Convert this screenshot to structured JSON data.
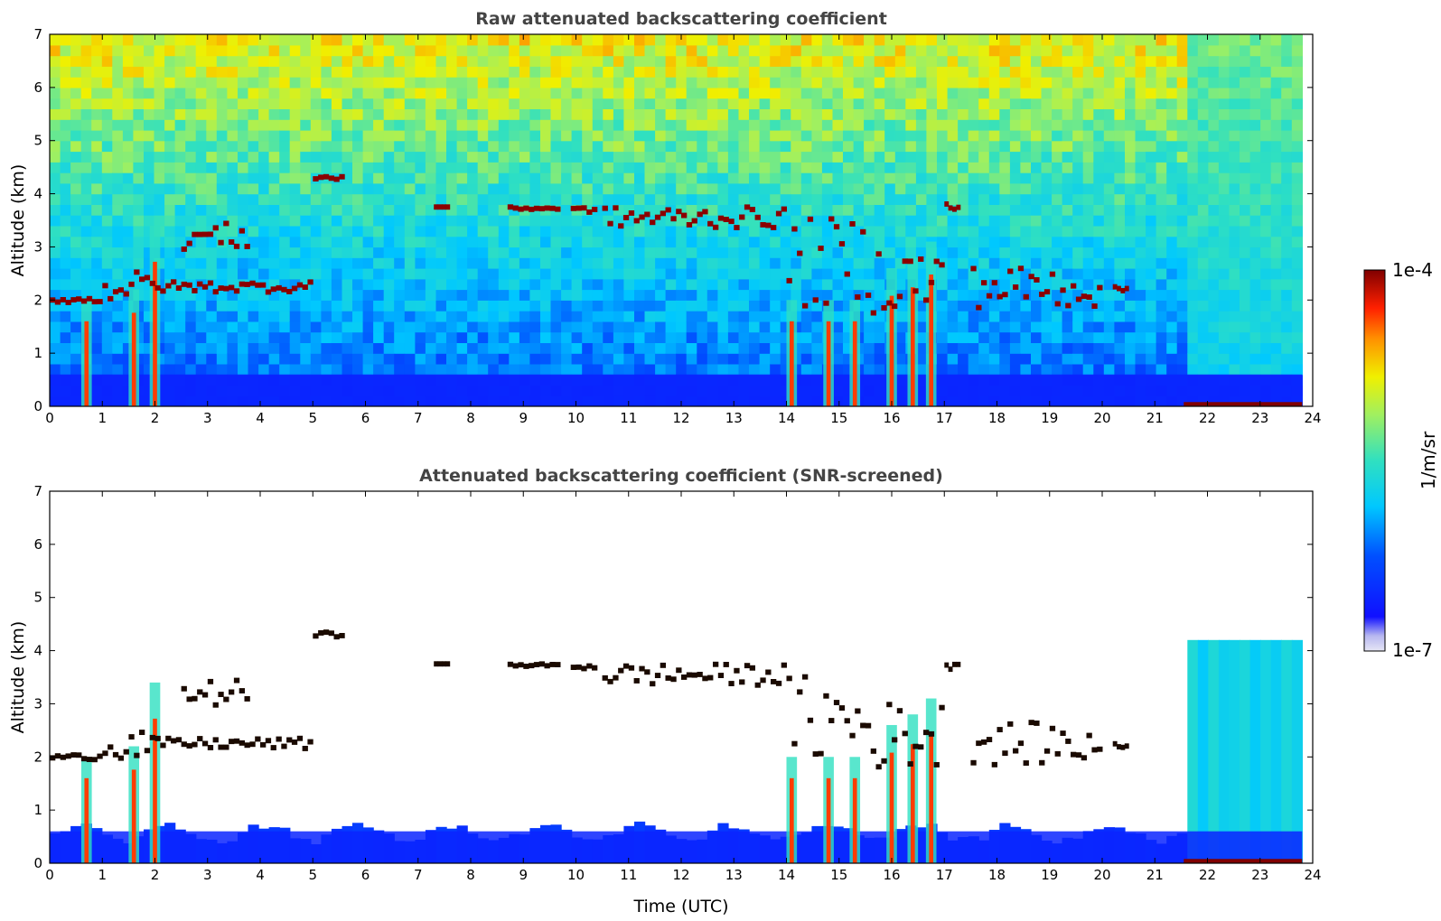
{
  "chart_data": [
    {
      "type": "heatmap",
      "title": "Raw attenuated backscattering coefficient",
      "ylabel": "Altitude (km)",
      "xlabel": "",
      "xlim": [
        0,
        24
      ],
      "ylim": [
        0,
        7
      ],
      "xticks": [
        "0",
        "1",
        "2",
        "3",
        "4",
        "5",
        "6",
        "7",
        "8",
        "9",
        "10",
        "11",
        "12",
        "13",
        "14",
        "15",
        "16",
        "17",
        "18",
        "19",
        "20",
        "21",
        "22",
        "23",
        "24"
      ],
      "yticks": [
        "0",
        "1",
        "2",
        "3",
        "4",
        "5",
        "6",
        "7"
      ],
      "screened": false,
      "cloud_layers": [
        {
          "t0": 0.0,
          "t1": 1.0,
          "alt": [
            1.9,
            2.0
          ]
        },
        {
          "t0": 1.0,
          "t1": 2.0,
          "alt": [
            1.9,
            2.5
          ]
        },
        {
          "t0": 2.0,
          "t1": 5.0,
          "alt": [
            2.1,
            2.3
          ]
        },
        {
          "t0": 2.5,
          "t1": 3.8,
          "alt": [
            2.9,
            3.4
          ]
        },
        {
          "t0": 5.0,
          "t1": 5.6,
          "alt": [
            4.2,
            4.3
          ]
        },
        {
          "t0": 7.3,
          "t1": 7.6,
          "alt": [
            3.7,
            3.7
          ]
        },
        {
          "t0": 8.7,
          "t1": 9.7,
          "alt": [
            3.65,
            3.7
          ]
        },
        {
          "t0": 9.9,
          "t1": 10.4,
          "alt": [
            3.6,
            3.7
          ]
        },
        {
          "t0": 10.5,
          "t1": 14.0,
          "alt": [
            3.3,
            3.7
          ]
        },
        {
          "t0": 14.0,
          "t1": 15.5,
          "alt": [
            1.8,
            3.5
          ]
        },
        {
          "t0": 15.5,
          "t1": 17.0,
          "alt": [
            1.7,
            3.0
          ]
        },
        {
          "t0": 17.0,
          "t1": 17.3,
          "alt": [
            3.6,
            3.8
          ]
        },
        {
          "t0": 17.5,
          "t1": 20.0,
          "alt": [
            1.8,
            2.6
          ]
        },
        {
          "t0": 20.2,
          "t1": 20.5,
          "alt": [
            2.1,
            2.2
          ]
        }
      ],
      "precip_columns": [
        {
          "t": 0.7,
          "top": 2.0
        },
        {
          "t": 1.6,
          "top": 2.2
        },
        {
          "t": 2.0,
          "top": 3.4
        },
        {
          "t": 14.1,
          "top": 2.0
        },
        {
          "t": 14.8,
          "top": 2.0
        },
        {
          "t": 15.3,
          "top": 2.0
        },
        {
          "t": 16.0,
          "top": 2.6
        },
        {
          "t": 16.4,
          "top": 2.8
        },
        {
          "t": 16.75,
          "top": 3.1
        }
      ],
      "boundary_layer_top_km": 0.6
    },
    {
      "type": "heatmap",
      "title": "Attenuated backscattering coefficient (SNR-screened)",
      "ylabel": "Altitude (km)",
      "xlabel": "Time (UTC)",
      "xlim": [
        0,
        24
      ],
      "ylim": [
        0,
        7
      ],
      "xticks": [
        "0",
        "1",
        "2",
        "3",
        "4",
        "5",
        "6",
        "7",
        "8",
        "9",
        "10",
        "11",
        "12",
        "13",
        "14",
        "15",
        "16",
        "17",
        "18",
        "19",
        "20",
        "21",
        "22",
        "23",
        "24"
      ],
      "yticks": [
        "0",
        "1",
        "2",
        "3",
        "4",
        "5",
        "6",
        "7"
      ],
      "screened": true,
      "cloud_layers": [
        {
          "t0": 0.0,
          "t1": 1.0,
          "alt": [
            1.9,
            2.0
          ]
        },
        {
          "t0": 1.0,
          "t1": 2.0,
          "alt": [
            1.9,
            2.5
          ]
        },
        {
          "t0": 2.0,
          "t1": 5.0,
          "alt": [
            2.1,
            2.3
          ]
        },
        {
          "t0": 2.5,
          "t1": 3.8,
          "alt": [
            2.9,
            3.4
          ]
        },
        {
          "t0": 5.0,
          "t1": 5.6,
          "alt": [
            4.2,
            4.3
          ]
        },
        {
          "t0": 7.3,
          "t1": 7.6,
          "alt": [
            3.7,
            3.7
          ]
        },
        {
          "t0": 8.7,
          "t1": 9.7,
          "alt": [
            3.65,
            3.7
          ]
        },
        {
          "t0": 9.9,
          "t1": 10.4,
          "alt": [
            3.6,
            3.7
          ]
        },
        {
          "t0": 10.5,
          "t1": 14.0,
          "alt": [
            3.3,
            3.7
          ]
        },
        {
          "t0": 14.0,
          "t1": 15.5,
          "alt": [
            1.8,
            3.5
          ]
        },
        {
          "t0": 15.5,
          "t1": 17.0,
          "alt": [
            1.7,
            3.0
          ]
        },
        {
          "t0": 17.0,
          "t1": 17.3,
          "alt": [
            3.6,
            3.8
          ]
        },
        {
          "t0": 17.5,
          "t1": 20.0,
          "alt": [
            1.8,
            2.6
          ]
        },
        {
          "t0": 20.2,
          "t1": 20.5,
          "alt": [
            2.1,
            2.2
          ]
        }
      ],
      "precip_columns": [
        {
          "t": 0.7,
          "top": 2.0
        },
        {
          "t": 1.6,
          "top": 2.2
        },
        {
          "t": 2.0,
          "top": 3.4
        },
        {
          "t": 14.1,
          "top": 2.0
        },
        {
          "t": 14.8,
          "top": 2.0
        },
        {
          "t": 15.3,
          "top": 2.0
        },
        {
          "t": 16.0,
          "top": 2.6
        },
        {
          "t": 16.4,
          "top": 2.8
        },
        {
          "t": 16.75,
          "top": 3.1
        }
      ],
      "boundary_layer_top_km": 0.6
    }
  ],
  "colorbar": {
    "min_label": "1e-7",
    "max_label": "1e-4",
    "label": "1/m/sr",
    "scale": "log",
    "colormap": "jet"
  }
}
